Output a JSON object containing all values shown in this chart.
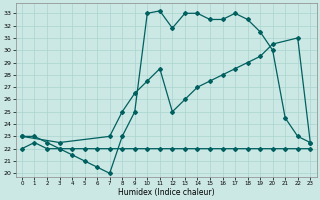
{
  "xlabel": "Humidex (Indice chaleur)",
  "bg_color": "#cce8e4",
  "line_color": "#006060",
  "grid_color": "#aad4d0",
  "xlim": [
    -0.5,
    23.5
  ],
  "ylim": [
    19.7,
    33.8
  ],
  "xticks": [
    0,
    1,
    2,
    3,
    4,
    5,
    6,
    7,
    8,
    9,
    10,
    11,
    12,
    13,
    14,
    15,
    16,
    17,
    18,
    19,
    20,
    21,
    22,
    23
  ],
  "yticks": [
    20,
    21,
    22,
    23,
    24,
    25,
    26,
    27,
    28,
    29,
    30,
    31,
    32,
    33
  ],
  "line1_x": [
    0,
    1,
    2,
    3,
    4,
    5,
    6,
    7,
    8,
    9,
    10,
    11,
    12,
    13,
    14,
    15,
    16,
    17,
    18,
    19,
    20,
    21,
    22,
    23
  ],
  "line1_y": [
    23,
    23,
    22.5,
    22,
    21.5,
    21,
    20.5,
    20,
    23,
    25,
    33,
    33.2,
    31.8,
    33,
    33,
    32.5,
    32.5,
    33,
    32.5,
    31.5,
    30,
    24.5,
    23,
    22.5
  ],
  "line2_x": [
    0,
    3,
    7,
    8,
    9,
    10,
    11,
    12,
    13,
    14,
    15,
    16,
    17,
    18,
    19,
    20,
    22,
    23
  ],
  "line2_y": [
    23,
    22.5,
    23,
    25,
    26.5,
    27.5,
    28.5,
    25,
    26,
    27,
    27.5,
    28,
    28.5,
    29,
    29.5,
    30.5,
    31,
    22.5
  ],
  "line3_x": [
    0,
    1,
    2,
    3,
    4,
    5,
    6,
    7,
    8,
    9,
    10,
    11,
    12,
    13,
    14,
    15,
    16,
    17,
    18,
    19,
    20,
    21,
    22,
    23
  ],
  "line3_y": [
    22,
    22.5,
    22,
    22,
    22,
    22,
    22,
    22,
    22,
    22,
    22,
    22,
    22,
    22,
    22,
    22,
    22,
    22,
    22,
    22,
    22,
    22,
    22,
    22
  ]
}
